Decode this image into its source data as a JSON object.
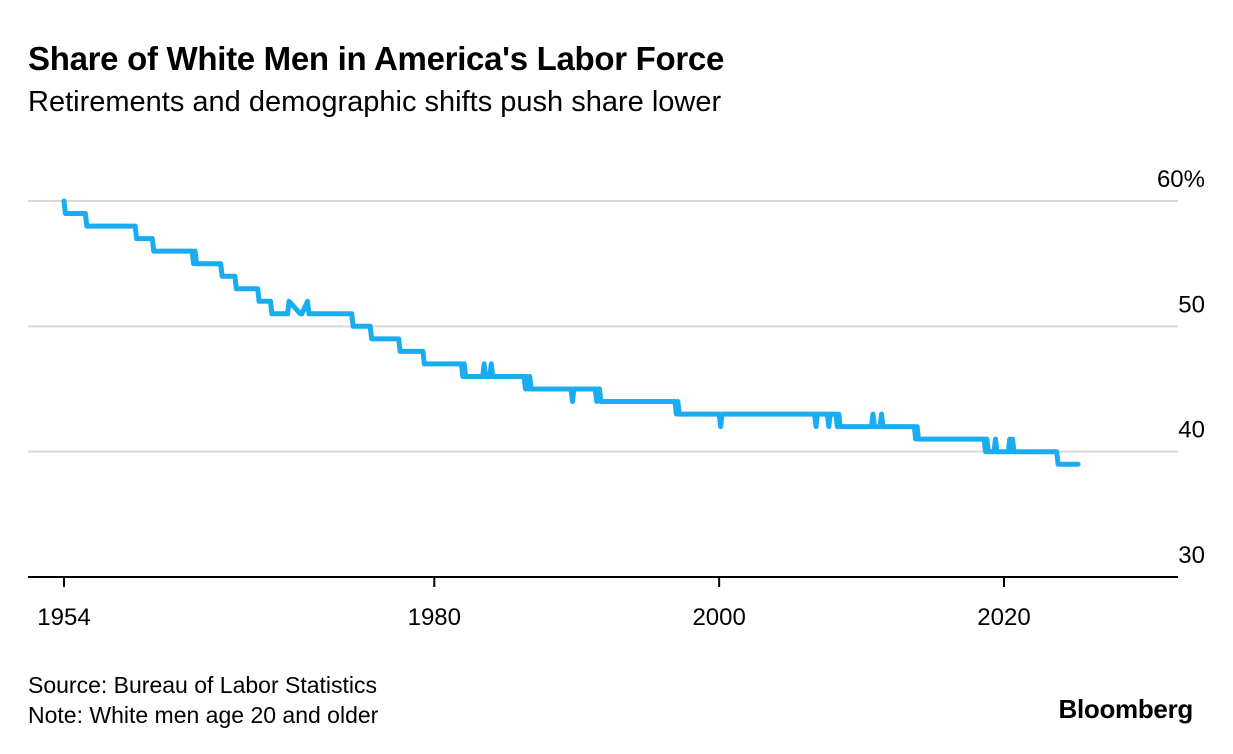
{
  "header": {
    "title": "Share of White Men in America's Labor Force",
    "subtitle": "Retirements and demographic shifts push share lower"
  },
  "footer": {
    "source": "Source: Bureau of Labor Statistics",
    "note": "Note: White men age 20 and older",
    "brand": "Bloomberg"
  },
  "colors": {
    "line": "#1aacf0",
    "grid": "#d9d9d9",
    "axis": "#000000"
  },
  "chart_data": {
    "type": "line",
    "title": "Share of White Men in America's Labor Force",
    "subtitle": "Retirements and demographic shifts push share lower",
    "xlim": [
      1954,
      2030
    ],
    "ylim": [
      30,
      60
    ],
    "y_ticks": [
      {
        "value": 60,
        "label": "60%"
      },
      {
        "value": 50,
        "label": "50"
      },
      {
        "value": 40,
        "label": "40"
      },
      {
        "value": 30,
        "label": "30"
      }
    ],
    "x_ticks": [
      {
        "value": 1954,
        "label": "1954"
      },
      {
        "value": 1980,
        "label": "1980"
      },
      {
        "value": 2000,
        "label": "2000"
      },
      {
        "value": 2020,
        "label": "2020"
      }
    ],
    "grid": true,
    "series": [
      {
        "x": [
          1954,
          1954.1,
          1954.2,
          1955.5,
          1955.6,
          1959.0,
          1959.1,
          1960.2,
          1960.3,
          1963.0,
          1963.1,
          1963.2,
          1963.3,
          1965.0,
          1965.1,
          1966.0,
          1966.1,
          1967.6,
          1967.7,
          1968.5,
          1968.6,
          1969.7,
          1969.8,
          1970.6,
          1970.7,
          1971.1,
          1971.2,
          1971.3,
          1974.2,
          1974.3,
          1975.5,
          1975.6,
          1977.5,
          1977.6,
          1979.2,
          1979.3,
          1981.9,
          1982.0,
          1982.1,
          1982.2,
          1983.4,
          1983.5,
          1983.6,
          1983.9,
          1984.0,
          1984.1,
          1986.3,
          1986.4,
          1986.5,
          1986.6,
          1986.7,
          1986.8,
          1989.6,
          1989.7,
          1989.8,
          1989.9,
          1991.3,
          1991.4,
          1991.5,
          1991.6,
          1991.7,
          1996.9,
          1997.0,
          1997.1,
          1997.2,
          1997.3,
          2000.0,
          2000.1,
          2000.2,
          2006.7,
          2006.8,
          2006.9,
          2007.0,
          2007.6,
          2007.7,
          2007.8,
          2007.9,
          2008.2,
          2008.3,
          2008.4,
          2008.5,
          2010.7,
          2010.8,
          2010.9,
          2011.0,
          2011.3,
          2011.4,
          2011.5,
          2011.6,
          2013.7,
          2013.8,
          2013.9,
          2014.0,
          2018.6,
          2018.7,
          2018.8,
          2018.9,
          2019.3,
          2019.4,
          2019.5,
          2019.6,
          2020.3,
          2020.4,
          2020.5,
          2020.6,
          2020.7,
          2023.7,
          2023.8,
          2025.2
        ],
        "y": [
          60,
          59,
          59,
          59,
          58,
          58,
          57,
          57,
          56,
          56,
          55,
          56,
          55,
          55,
          54,
          54,
          53,
          53,
          52,
          52,
          51,
          51,
          52,
          51,
          51,
          52,
          51,
          51,
          51,
          50,
          50,
          49,
          49,
          48,
          48,
          47,
          47,
          46,
          47,
          46,
          46,
          47,
          46,
          46,
          47,
          46,
          46,
          45,
          46,
          45,
          46,
          45,
          45,
          44,
          45,
          45,
          45,
          44,
          45,
          45,
          44,
          44,
          43,
          44,
          43,
          43,
          43,
          42,
          43,
          43,
          42,
          43,
          43,
          43,
          42,
          43,
          43,
          43,
          42,
          43,
          42,
          42,
          43,
          42,
          42,
          42,
          43,
          42,
          42,
          42,
          41,
          42,
          41,
          41,
          40,
          41,
          40,
          40,
          41,
          40,
          40,
          40,
          41,
          40,
          41,
          40,
          40,
          39,
          39
        ]
      }
    ]
  }
}
